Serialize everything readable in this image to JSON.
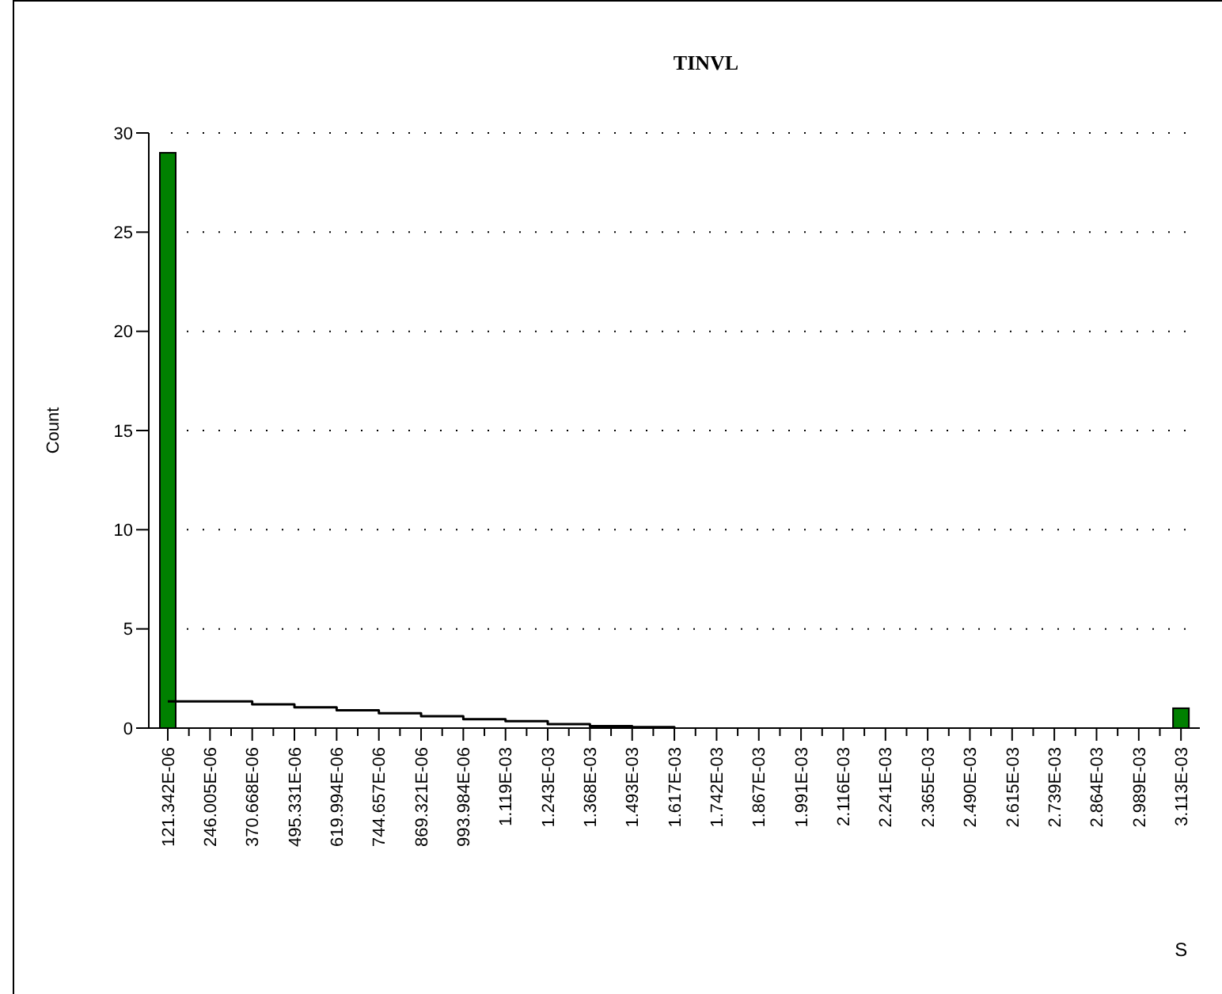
{
  "chart_data": {
    "type": "bar",
    "title": "TINVL",
    "xlabel": "S",
    "ylabel": "Count",
    "categories": [
      "121.342E-06",
      "246.005E-06",
      "370.668E-06",
      "495.331E-06",
      "619.994E-06",
      "744.657E-06",
      "869.321E-06",
      "993.984E-06",
      "1.119E-03",
      "1.243E-03",
      "1.368E-03",
      "1.493E-03",
      "1.617E-03",
      "1.742E-03",
      "1.867E-03",
      "1.991E-03",
      "2.116E-03",
      "2.241E-03",
      "2.365E-03",
      "2.490E-03",
      "2.615E-03",
      "2.739E-03",
      "2.864E-03",
      "2.989E-03",
      "3.113E-03"
    ],
    "series": [
      {
        "color": "#008000",
        "values": [
          29,
          0,
          0,
          0,
          0,
          0,
          0,
          0,
          0,
          0,
          0,
          0,
          0,
          0,
          0,
          0,
          0,
          0,
          0,
          0,
          0,
          0,
          0,
          0,
          1
        ]
      },
      {
        "type": "step",
        "color": "#000000",
        "values": [
          1.35,
          1.35,
          1.2,
          1.05,
          0.9,
          0.75,
          0.6,
          0.45,
          0.35,
          0.2,
          0.1,
          0.05,
          0,
          null,
          null,
          null,
          null,
          null,
          null,
          null,
          null,
          null,
          null,
          null,
          null
        ]
      }
    ],
    "ylim": [
      0,
      30
    ],
    "yticks": [
      0,
      5,
      10,
      15,
      20,
      25,
      30
    ],
    "grid": "y",
    "line_style": "solid"
  }
}
